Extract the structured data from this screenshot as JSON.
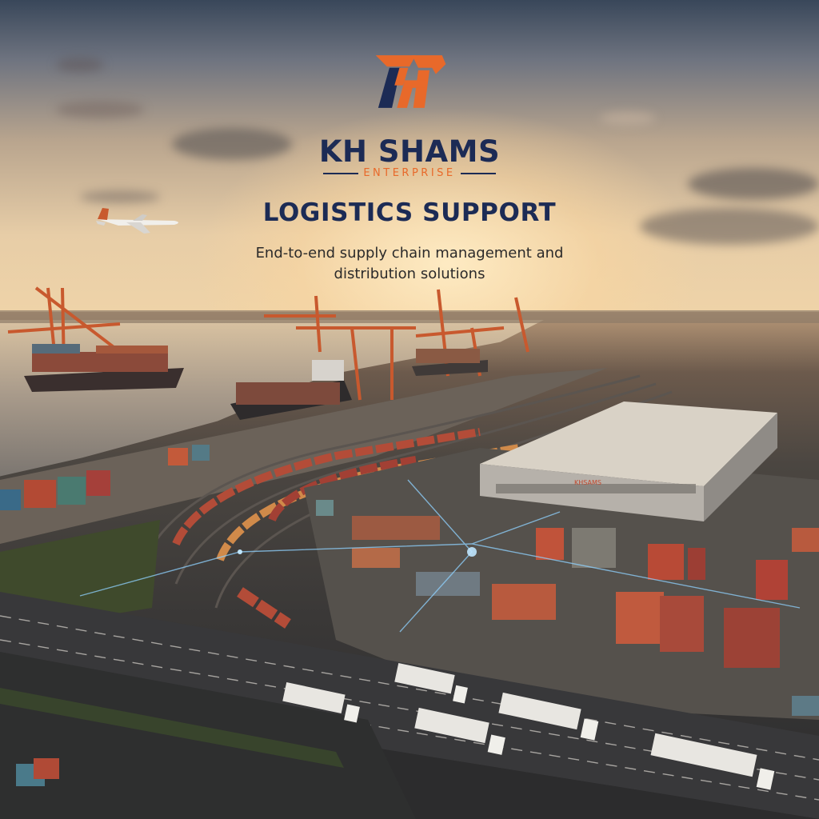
{
  "brand": {
    "name": "KH SHAMS",
    "subtitle": "ENTERPRISE",
    "logo_icon": "kh-monogram-icon",
    "colors": {
      "navy": "#1c2b55",
      "orange": "#e8692a"
    }
  },
  "headline": "LOGISTICS SUPPORT",
  "tagline_line1": "End-to-end supply chain management and",
  "tagline_line2": "distribution solutions",
  "scene": {
    "description_icons": [
      "airplane-icon",
      "cargo-ship-icon",
      "container-crane-icon",
      "freight-train-icon",
      "warehouse-icon",
      "truck-icon",
      "shipping-container-icon"
    ],
    "warehouse_sign": "KHSAMS"
  }
}
